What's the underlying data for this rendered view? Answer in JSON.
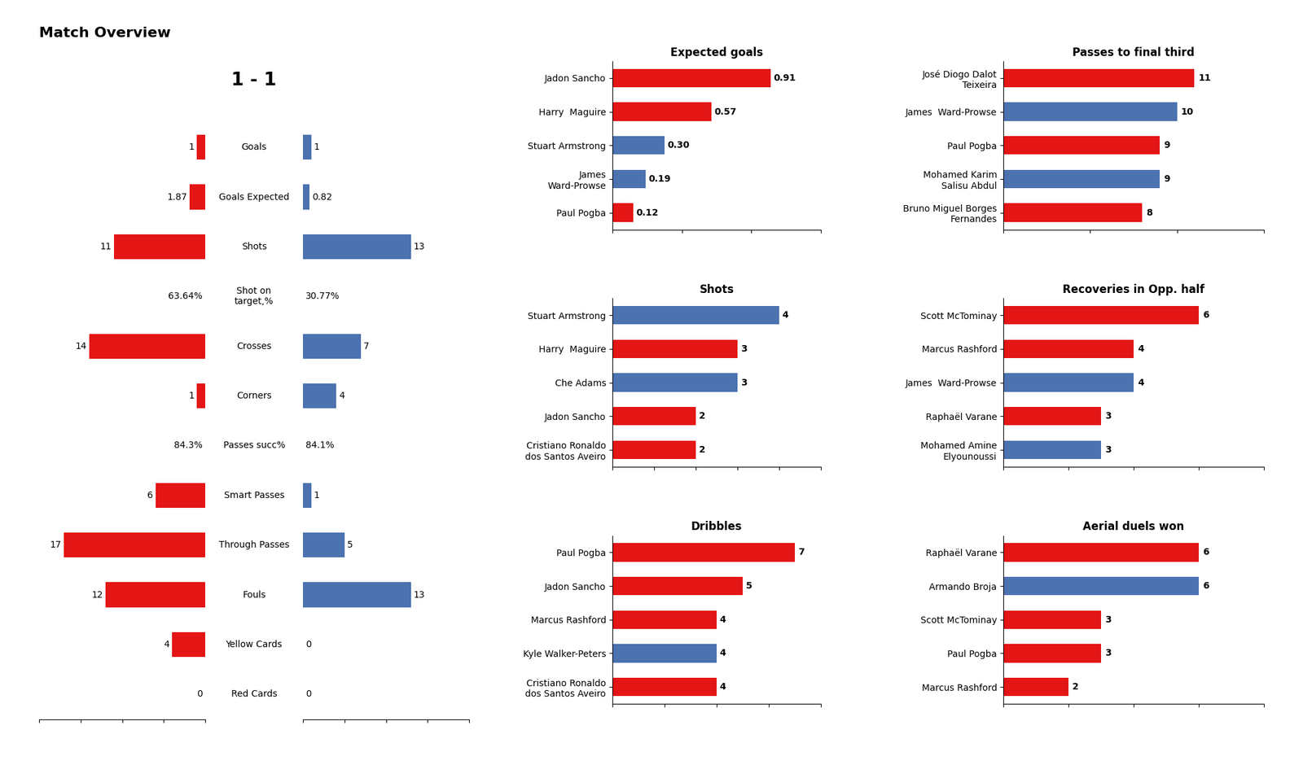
{
  "chart_data": [
    {
      "type": "bar",
      "orientation": "horizontal",
      "title": "Match Overview",
      "subtitle": "1 - 1",
      "categories": [
        "Goals",
        "Goals Expected",
        "Shots",
        "Shot on\ntarget,%",
        "Crosses",
        "Corners",
        "Passes succ%",
        "Smart Passes",
        "Through Passes",
        "Fouls",
        "Yellow Cards",
        "Red Cards"
      ],
      "series": [
        {
          "color": "#E31515",
          "values": [
            1,
            1.87,
            11,
            null,
            14,
            1,
            null,
            6,
            17,
            12,
            4,
            0
          ],
          "value_labels": [
            "1",
            "1.87",
            "11",
            "63.64%",
            "14",
            "1",
            "84.3%",
            "6",
            "17",
            "12",
            "4",
            "0"
          ]
        },
        {
          "color": "#4C72B0",
          "values": [
            1,
            0.82,
            13,
            null,
            7,
            4,
            null,
            1,
            5,
            13,
            0,
            0
          ],
          "value_labels": [
            "1",
            "0.82",
            "13",
            "30.77%",
            "7",
            "4",
            "84.1%",
            "1",
            "5",
            "13",
            "0",
            "0"
          ]
        }
      ],
      "xlim": [
        0,
        20
      ],
      "xticks": [
        0,
        5,
        10,
        15,
        20
      ],
      "data_labels": true,
      "tick_labels": "y"
    },
    {
      "type": "bar",
      "orientation": "horizontal",
      "title": "Expected goals",
      "categories": [
        "Jadon Sancho",
        "Harry  Maguire",
        "Stuart Armstrong",
        "James\nWard-Prowse",
        "Paul Pogba"
      ],
      "values": [
        0.91,
        0.57,
        0.3,
        0.19,
        0.12
      ],
      "value_labels": [
        "0.91",
        "0.57",
        "0.30",
        "0.19",
        "0.12"
      ],
      "colors": [
        "#E31515",
        "#E31515",
        "#4C72B0",
        "#4C72B0",
        "#E31515"
      ],
      "xlim": [
        0,
        1.2
      ],
      "xticks": [
        0,
        0.4,
        0.8,
        1.2
      ],
      "data_labels": true,
      "tick_labels": "y"
    },
    {
      "type": "bar",
      "orientation": "horizontal",
      "title": "Shots",
      "categories": [
        "Stuart Armstrong",
        "Harry  Maguire",
        "Che Adams",
        "Jadon Sancho",
        "Cristiano Ronaldo\ndos Santos Aveiro"
      ],
      "values": [
        4,
        3,
        3,
        2,
        2
      ],
      "colors": [
        "#4C72B0",
        "#E31515",
        "#4C72B0",
        "#E31515",
        "#E31515"
      ],
      "xlim": [
        0,
        5
      ],
      "xticks": [
        0,
        1,
        2,
        3,
        4,
        5
      ],
      "data_labels": true,
      "tick_labels": "y"
    },
    {
      "type": "bar",
      "orientation": "horizontal",
      "title": "Dribbles",
      "categories": [
        "Paul Pogba",
        "Jadon Sancho",
        "Marcus Rashford",
        "Kyle Walker-Peters",
        "Cristiano Ronaldo\ndos Santos Aveiro"
      ],
      "values": [
        7,
        5,
        4,
        4,
        4
      ],
      "colors": [
        "#E31515",
        "#E31515",
        "#E31515",
        "#4C72B0",
        "#E31515"
      ],
      "xlim": [
        0,
        8
      ],
      "xticks": [
        0,
        2,
        4,
        6,
        8
      ],
      "data_labels": true,
      "tick_labels": "y"
    },
    {
      "type": "bar",
      "orientation": "horizontal",
      "title": "Passes to final third",
      "categories": [
        "José Diogo Dalot\nTeixeira",
        "James  Ward-Prowse",
        "Paul Pogba",
        "Mohamed Karim\nSalisu Abdul",
        "Bruno Miguel Borges\nFernandes"
      ],
      "values": [
        11,
        10,
        9,
        9,
        8
      ],
      "colors": [
        "#E31515",
        "#4C72B0",
        "#E31515",
        "#4C72B0",
        "#E31515"
      ],
      "xlim": [
        0,
        15
      ],
      "xticks": [
        0,
        5,
        10,
        15
      ],
      "data_labels": true,
      "tick_labels": "y"
    },
    {
      "type": "bar",
      "orientation": "horizontal",
      "title": "Recoveries in Opp. half",
      "categories": [
        "Scott McTominay",
        "Marcus Rashford",
        "James  Ward-Prowse",
        "Raphaël Varane",
        "Mohamed Amine\nElyounoussi"
      ],
      "values": [
        6,
        4,
        4,
        3,
        3
      ],
      "colors": [
        "#E31515",
        "#E31515",
        "#4C72B0",
        "#E31515",
        "#4C72B0"
      ],
      "xlim": [
        0,
        8
      ],
      "xticks": [
        0,
        2,
        4,
        6,
        8
      ],
      "data_labels": true,
      "tick_labels": "y"
    },
    {
      "type": "bar",
      "orientation": "horizontal",
      "title": "Aerial duels won",
      "categories": [
        "Raphaël Varane",
        "Armando Broja",
        "Scott McTominay",
        "Paul Pogba",
        "Marcus Rashford"
      ],
      "values": [
        6,
        6,
        3,
        3,
        2
      ],
      "colors": [
        "#E31515",
        "#4C72B0",
        "#E31515",
        "#E31515",
        "#E31515"
      ],
      "xlim": [
        0,
        8
      ],
      "xticks": [
        0,
        2,
        4,
        6,
        8
      ],
      "data_labels": true,
      "tick_labels": "y"
    }
  ]
}
